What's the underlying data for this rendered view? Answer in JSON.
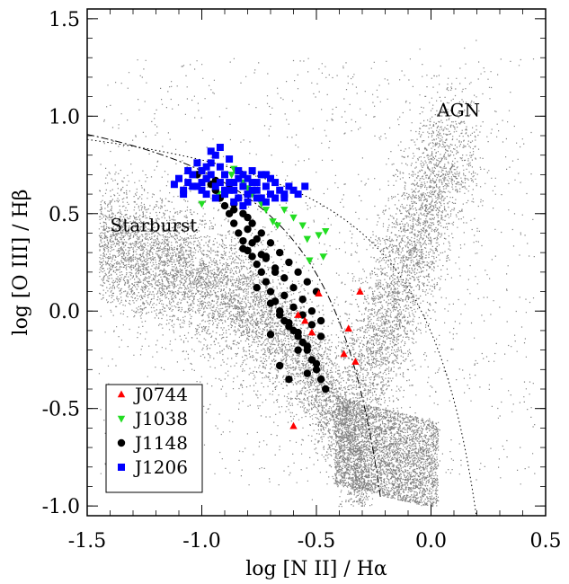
{
  "chart_data": {
    "type": "scatter",
    "title": "",
    "xlabel": "log [N II] / Hα",
    "ylabel": "log [O III] / Hβ",
    "xlim": [
      -1.5,
      0.5
    ],
    "ylim": [
      -1.05,
      1.55
    ],
    "x_ticks": [
      -1.5,
      -1.0,
      -0.5,
      0.0,
      0.5
    ],
    "x_tick_labels": [
      "-1.5",
      "-1.0",
      "-0.5",
      "0.0",
      "0.5"
    ],
    "y_ticks": [
      -1.0,
      -0.5,
      0.0,
      0.5,
      1.0,
      1.5
    ],
    "y_tick_labels": [
      "-1.0",
      "-0.5",
      "0.0",
      "0.5",
      "1.0",
      "1.5"
    ],
    "grid": false,
    "legend_position": "bottom-left",
    "annotations": [
      {
        "text": "AGN",
        "x": 0.12,
        "y": 1.0
      },
      {
        "text": "Starburst",
        "x": -1.21,
        "y": 0.41
      }
    ],
    "background": {
      "name": "SDSS galaxies",
      "color": "#808080"
    },
    "curves": [
      {
        "name": "Kauffmann demarcation",
        "style": "dashed",
        "formula": "0.61/(x-0.05)+1.3"
      },
      {
        "name": "Kewley demarcation",
        "style": "dotted",
        "formula": "0.61/(x-0.47)+1.19"
      }
    ],
    "series": [
      {
        "name": "J0744",
        "marker": "triangle-up",
        "color": "#ff0000",
        "x": [
          -0.49,
          -0.31,
          -0.58,
          -0.55,
          -0.52,
          -0.36,
          -0.38,
          -0.33,
          -0.6
        ],
        "y": [
          0.09,
          0.1,
          -0.02,
          -0.05,
          -0.11,
          -0.09,
          -0.22,
          -0.26,
          -0.59
        ]
      },
      {
        "name": "J1038",
        "marker": "triangle-down",
        "color": "#22dd22",
        "x": [
          -1.0,
          -0.93,
          -0.86,
          -0.82,
          -0.78,
          -0.72,
          -0.69,
          -0.67,
          -0.64,
          -0.6,
          -0.56,
          -0.54,
          -0.49,
          -0.46,
          -0.53,
          -0.47,
          -0.87,
          -0.8,
          -0.74
        ],
        "y": [
          0.55,
          0.6,
          0.73,
          0.66,
          0.6,
          0.52,
          0.46,
          0.44,
          0.52,
          0.48,
          0.44,
          0.37,
          0.39,
          0.41,
          0.26,
          0.28,
          0.7,
          0.63,
          0.55
        ],
        "value_note": "estimated from plot"
      },
      {
        "name": "J1148",
        "marker": "circle",
        "color": "#000000",
        "x": [
          -1.02,
          -1.0,
          -0.98,
          -0.96,
          -0.94,
          -0.92,
          -0.9,
          -0.88,
          -0.86,
          -0.84,
          -0.82,
          -0.8,
          -0.78,
          -0.76,
          -0.74,
          -0.72,
          -0.7,
          -0.68,
          -0.66,
          -0.64,
          -0.62,
          -0.6,
          -0.58,
          -0.56,
          -0.54,
          -0.52,
          -0.5,
          -0.48,
          -0.9,
          -0.86,
          -0.82,
          -0.78,
          -0.74,
          -0.7,
          -0.66,
          -0.62,
          -0.58,
          -0.54,
          -0.5,
          -0.78,
          -0.72,
          -0.68,
          -0.64,
          -0.6,
          -0.56,
          -0.52,
          -0.48,
          -0.82,
          -0.76,
          -0.7,
          -0.66,
          -0.62,
          -0.58,
          -0.54,
          -0.5,
          -0.46,
          -0.94,
          -0.88,
          -0.84,
          -0.8,
          -0.76,
          -0.72,
          -0.68,
          -0.64,
          -0.6,
          -0.56,
          -0.52,
          -0.48,
          -0.86,
          -0.8,
          -0.74,
          -0.7,
          -0.66,
          -0.62,
          -0.58,
          -0.54
        ],
        "y": [
          0.7,
          0.72,
          0.68,
          0.65,
          0.62,
          0.58,
          0.54,
          0.5,
          0.45,
          0.4,
          0.36,
          0.31,
          0.28,
          0.24,
          0.2,
          0.15,
          0.1,
          0.05,
          0.0,
          -0.05,
          -0.08,
          -0.1,
          -0.13,
          -0.16,
          -0.2,
          -0.25,
          -0.3,
          -0.35,
          0.6,
          0.55,
          0.5,
          0.45,
          0.4,
          0.35,
          0.3,
          0.25,
          0.2,
          0.15,
          0.1,
          0.35,
          0.28,
          0.22,
          0.17,
          0.12,
          0.06,
          0.0,
          -0.05,
          0.32,
          0.12,
          0.04,
          -0.02,
          -0.06,
          -0.11,
          -0.18,
          -0.27,
          -0.4,
          0.67,
          0.63,
          0.58,
          0.48,
          0.37,
          0.27,
          0.2,
          0.08,
          0.02,
          -0.02,
          -0.07,
          -0.13,
          0.52,
          0.42,
          0.29,
          -0.12,
          -0.28,
          -0.35,
          -0.2,
          -0.32
        ],
        "value_note": "estimated from plot"
      },
      {
        "name": "J1206",
        "marker": "square",
        "color": "#0000ff",
        "x": [
          -1.12,
          -1.1,
          -1.08,
          -1.06,
          -1.04,
          -1.02,
          -1.0,
          -0.98,
          -0.96,
          -0.94,
          -0.92,
          -0.9,
          -0.88,
          -0.86,
          -0.84,
          -0.82,
          -0.8,
          -0.78,
          -0.76,
          -0.74,
          -0.72,
          -0.7,
          -0.68,
          -0.66,
          -0.64,
          -0.62,
          -0.6,
          -0.58,
          -0.55,
          -1.08,
          -1.04,
          -1.0,
          -0.96,
          -0.92,
          -0.88,
          -0.84,
          -0.8,
          -0.76,
          -0.72,
          -0.68,
          -0.64,
          -1.06,
          -1.02,
          -0.98,
          -0.94,
          -0.9,
          -0.86,
          -0.82,
          -0.78,
          -0.74,
          -0.7,
          -1.0,
          -0.96,
          -0.92,
          -0.88,
          -0.84,
          -0.8,
          -0.76,
          -0.98,
          -0.94,
          -0.9,
          -0.86,
          -0.82,
          -0.78,
          -0.72
        ],
        "y": [
          0.65,
          0.68,
          0.62,
          0.66,
          0.7,
          0.64,
          0.72,
          0.68,
          0.76,
          0.8,
          0.74,
          0.7,
          0.66,
          0.62,
          0.68,
          0.64,
          0.6,
          0.66,
          0.62,
          0.58,
          0.64,
          0.6,
          0.66,
          0.62,
          0.58,
          0.64,
          0.62,
          0.6,
          0.64,
          0.6,
          0.64,
          0.62,
          0.7,
          0.66,
          0.62,
          0.58,
          0.56,
          0.58,
          0.56,
          0.58,
          0.6,
          0.72,
          0.76,
          0.6,
          0.58,
          0.62,
          0.66,
          0.7,
          0.72,
          0.7,
          0.68,
          0.66,
          0.82,
          0.84,
          0.78,
          0.72,
          0.68,
          0.66,
          0.74,
          0.64,
          0.6,
          0.56,
          0.54,
          0.62,
          0.7
        ],
        "value_note": "estimated from plot"
      }
    ]
  }
}
